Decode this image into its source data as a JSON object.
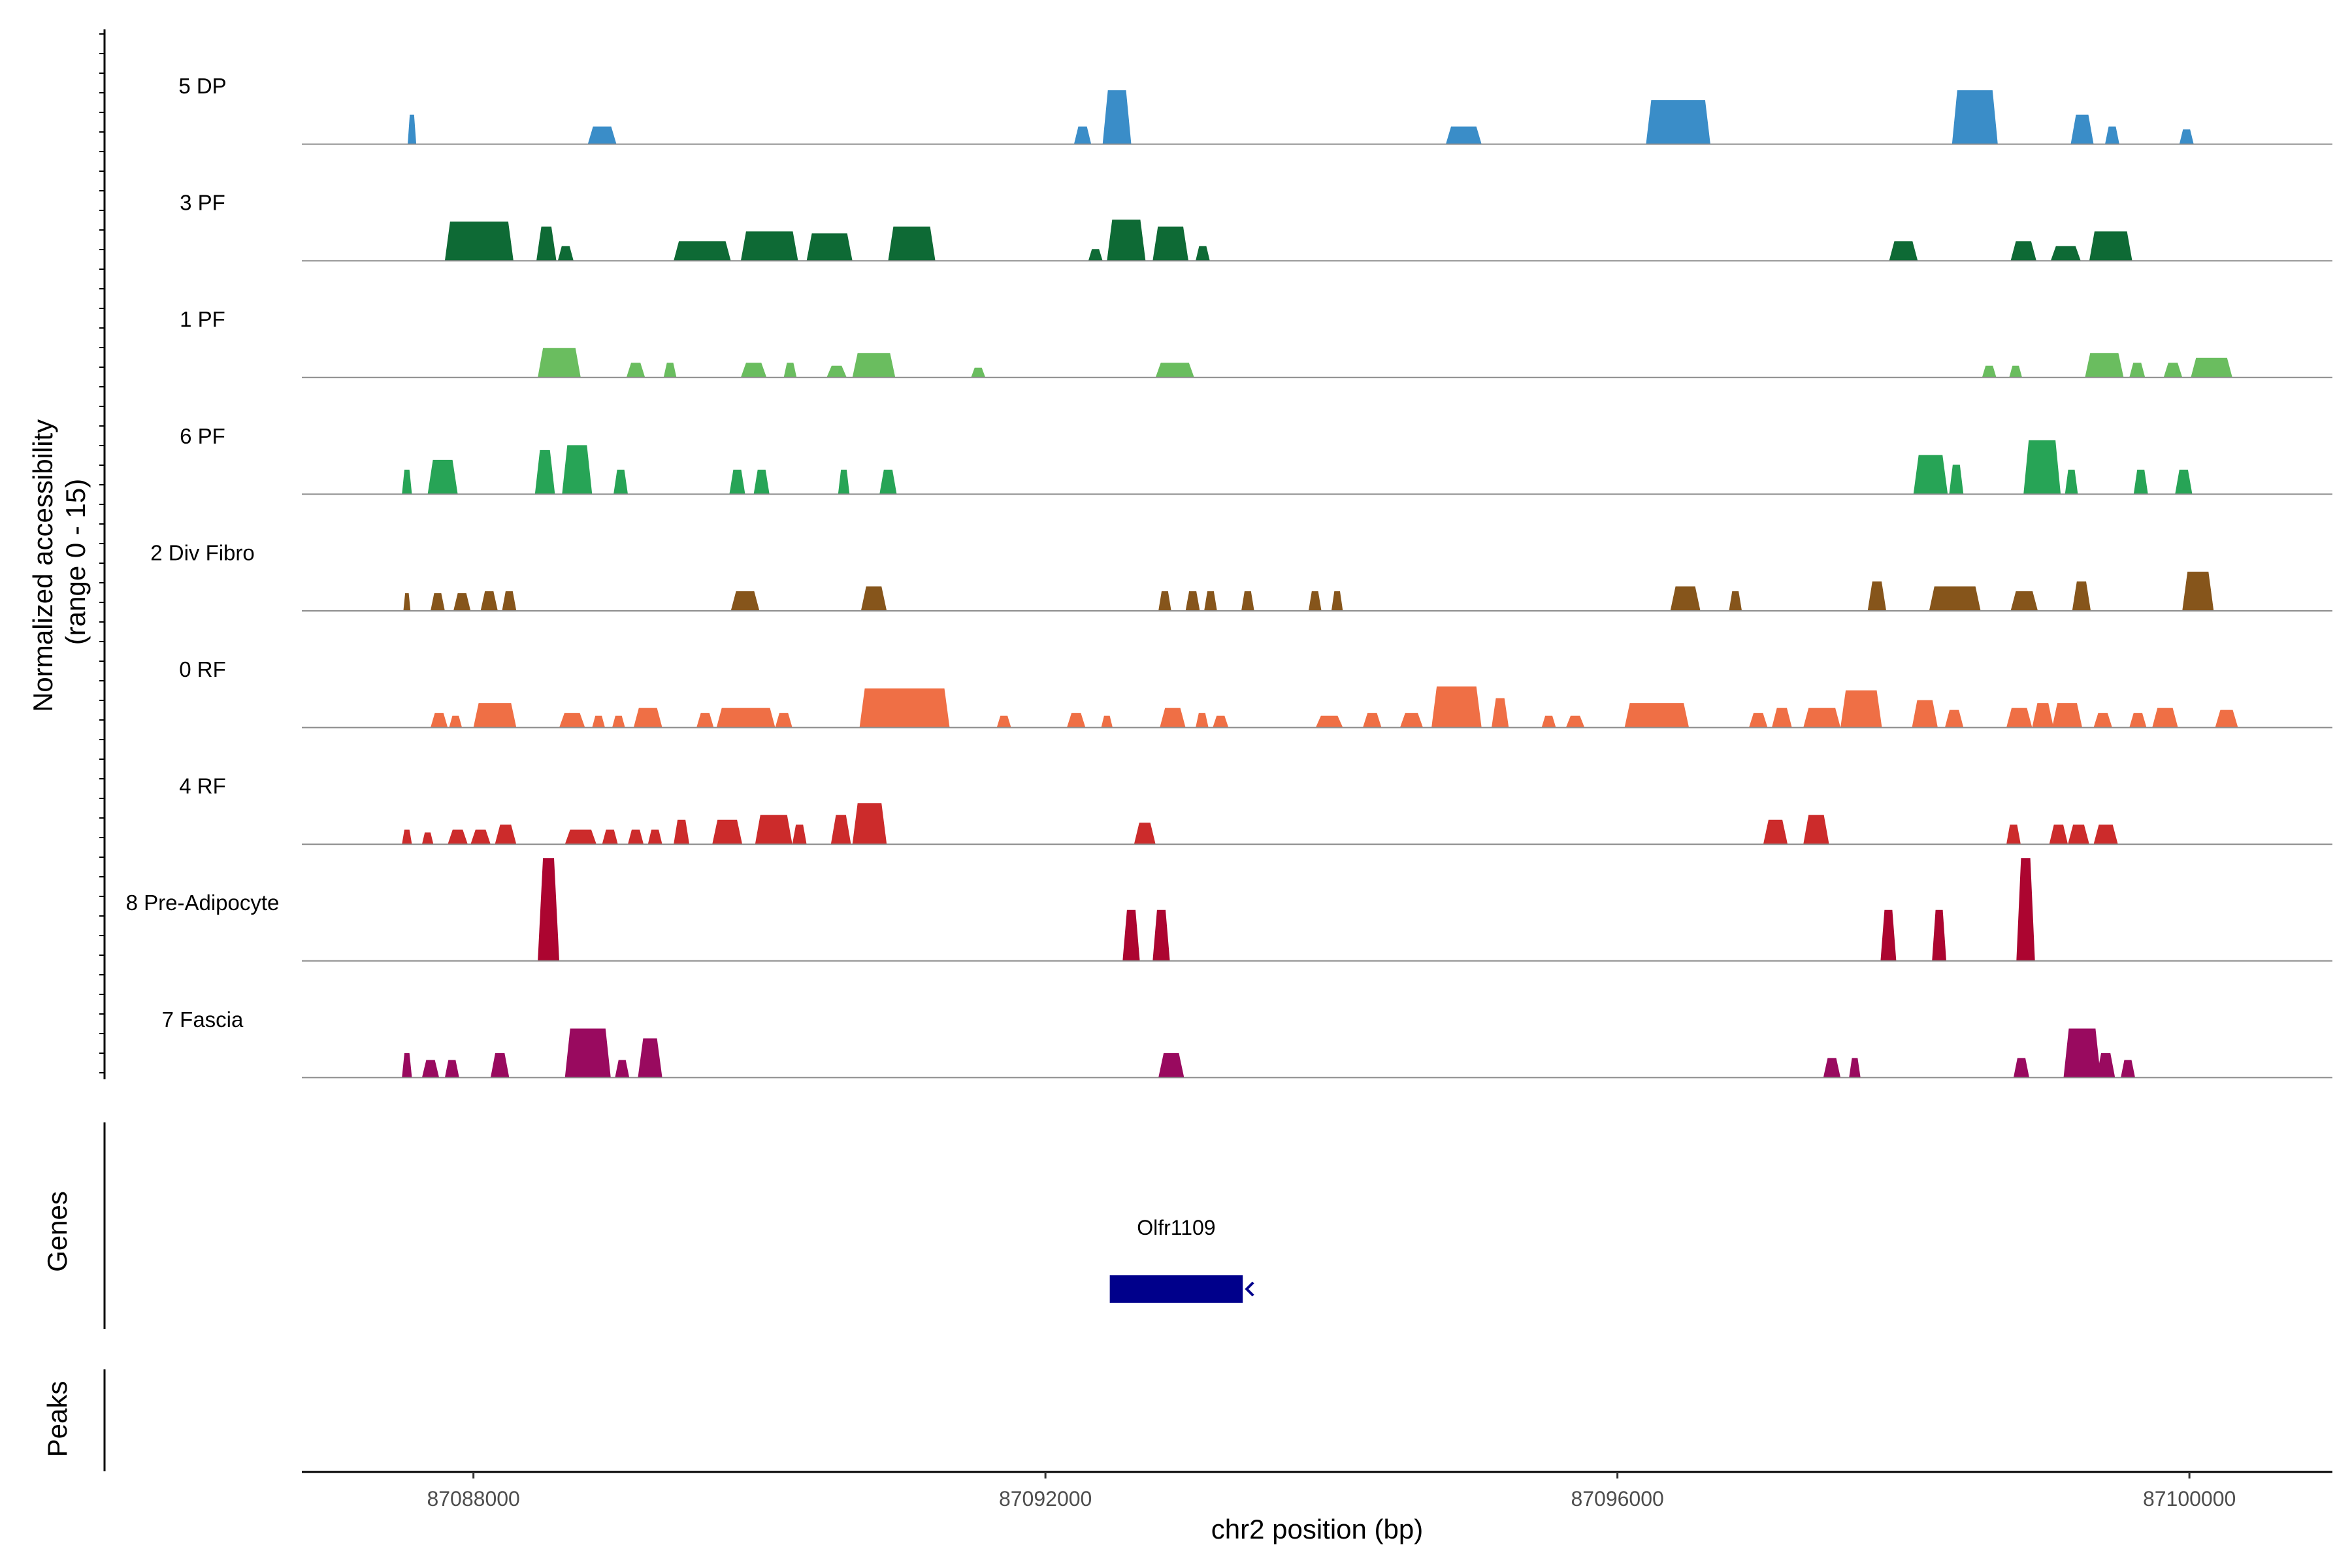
{
  "chart_data": {
    "type": "area",
    "title": "",
    "ylabel_line1": "Normalized accessibility",
    "ylabel_line2": "(range 0 - 15)",
    "ylim": [
      0,
      15
    ],
    "xlabel": "chr2 position (bp)",
    "xlim": [
      87086800,
      87101000
    ],
    "x_ticks": [
      87088000,
      87092000,
      87096000,
      87100000
    ],
    "x_tick_labels": [
      "87088000",
      "87092000",
      "87096000",
      "87100000"
    ],
    "tracks": [
      {
        "name": "5 DP",
        "color": "#3a8dc8",
        "peaks": [
          [
            87087540,
            87087600,
            0.3
          ],
          [
            87088800,
            87089000,
            0.18
          ],
          [
            87092200,
            87092320,
            0.18
          ],
          [
            87092400,
            87092600,
            0.55
          ],
          [
            87094800,
            87095050,
            0.18
          ],
          [
            87096200,
            87096650,
            0.45
          ],
          [
            87098340,
            87098660,
            0.55
          ],
          [
            87099170,
            87099330,
            0.3
          ],
          [
            87099410,
            87099510,
            0.18
          ],
          [
            87099930,
            87100030,
            0.15
          ]
        ]
      },
      {
        "name": "3 PF",
        "color": "#0e6a35",
        "peaks": [
          [
            87087800,
            87088280,
            0.4
          ],
          [
            87088440,
            87088580,
            0.35
          ],
          [
            87088590,
            87088700,
            0.15
          ],
          [
            87089400,
            87089800,
            0.2
          ],
          [
            87089870,
            87090270,
            0.3
          ],
          [
            87090330,
            87090650,
            0.28
          ],
          [
            87090900,
            87091230,
            0.35
          ],
          [
            87092300,
            87092400,
            0.12
          ],
          [
            87092430,
            87092700,
            0.42
          ],
          [
            87092750,
            87093000,
            0.35
          ],
          [
            87093050,
            87093150,
            0.15
          ],
          [
            87097900,
            87098100,
            0.2
          ],
          [
            87098750,
            87098930,
            0.2
          ],
          [
            87099030,
            87099240,
            0.15
          ],
          [
            87099300,
            87099600,
            0.3
          ]
        ]
      },
      {
        "name": "1 PF",
        "color": "#6abd5f",
        "peaks": [
          [
            87088450,
            87088750,
            0.3
          ],
          [
            87089070,
            87089200,
            0.15
          ],
          [
            87089330,
            87089420,
            0.15
          ],
          [
            87089870,
            87090050,
            0.15
          ],
          [
            87090170,
            87090260,
            0.15
          ],
          [
            87090470,
            87090610,
            0.12
          ],
          [
            87090650,
            87090950,
            0.25
          ],
          [
            87091480,
            87091580,
            0.1
          ],
          [
            87092770,
            87093040,
            0.15
          ],
          [
            87098550,
            87098650,
            0.12
          ],
          [
            87098740,
            87098830,
            0.12
          ],
          [
            87099270,
            87099540,
            0.25
          ],
          [
            87099580,
            87099690,
            0.15
          ],
          [
            87099820,
            87099950,
            0.15
          ],
          [
            87100010,
            87100300,
            0.2
          ]
        ]
      },
      {
        "name": "6 PF",
        "color": "#27a456",
        "peaks": [
          [
            87087500,
            87087570,
            0.25
          ],
          [
            87087680,
            87087890,
            0.35
          ],
          [
            87088430,
            87088570,
            0.45
          ],
          [
            87088620,
            87088830,
            0.5
          ],
          [
            87088980,
            87089080,
            0.25
          ],
          [
            87089790,
            87089900,
            0.25
          ],
          [
            87089960,
            87090070,
            0.25
          ],
          [
            87090550,
            87090630,
            0.25
          ],
          [
            87090840,
            87090960,
            0.25
          ],
          [
            87098070,
            87098310,
            0.4
          ],
          [
            87098320,
            87098420,
            0.3
          ],
          [
            87098840,
            87099100,
            0.55
          ],
          [
            87099130,
            87099220,
            0.25
          ],
          [
            87099610,
            87099710,
            0.25
          ],
          [
            87099900,
            87100020,
            0.25
          ]
        ]
      },
      {
        "name": "2 Div Fibro",
        "color": "#86551b",
        "peaks": [
          [
            87087510,
            87087560,
            0.18
          ],
          [
            87087700,
            87087800,
            0.18
          ],
          [
            87087860,
            87087980,
            0.18
          ],
          [
            87088050,
            87088170,
            0.2
          ],
          [
            87088200,
            87088300,
            0.2
          ],
          [
            87089800,
            87090000,
            0.2
          ],
          [
            87090710,
            87090890,
            0.25
          ],
          [
            87092790,
            87092880,
            0.2
          ],
          [
            87092980,
            87093080,
            0.2
          ],
          [
            87093110,
            87093200,
            0.2
          ],
          [
            87093370,
            87093460,
            0.2
          ],
          [
            87093840,
            87093930,
            0.2
          ],
          [
            87094000,
            87094080,
            0.2
          ],
          [
            87096370,
            87096580,
            0.25
          ],
          [
            87096780,
            87096870,
            0.2
          ],
          [
            87097750,
            87097880,
            0.3
          ],
          [
            87098180,
            87098540,
            0.25
          ],
          [
            87098750,
            87098940,
            0.2
          ],
          [
            87099180,
            87099310,
            0.3
          ],
          [
            87099950,
            87100170,
            0.4
          ]
        ]
      },
      {
        "name": "0 RF",
        "color": "#ef6f45",
        "peaks": [
          [
            87087700,
            87087820,
            0.15
          ],
          [
            87087830,
            87087920,
            0.12
          ],
          [
            87088000,
            87088300,
            0.25
          ],
          [
            87088600,
            87088780,
            0.15
          ],
          [
            87088830,
            87088920,
            0.12
          ],
          [
            87088970,
            87089060,
            0.12
          ],
          [
            87089120,
            87089320,
            0.2
          ],
          [
            87089560,
            87089680,
            0.15
          ],
          [
            87089700,
            87090110,
            0.2
          ],
          [
            87090110,
            87090230,
            0.15
          ],
          [
            87090700,
            87091330,
            0.4
          ],
          [
            87091660,
            87091760,
            0.12
          ],
          [
            87092150,
            87092280,
            0.15
          ],
          [
            87092390,
            87092470,
            0.12
          ],
          [
            87092800,
            87092980,
            0.2
          ],
          [
            87093050,
            87093140,
            0.15
          ],
          [
            87093170,
            87093280,
            0.12
          ],
          [
            87093890,
            87094080,
            0.12
          ],
          [
            87094220,
            87094350,
            0.15
          ],
          [
            87094480,
            87094640,
            0.15
          ],
          [
            87094700,
            87095050,
            0.42
          ],
          [
            87095120,
            87095240,
            0.3
          ],
          [
            87095470,
            87095570,
            0.12
          ],
          [
            87095640,
            87095770,
            0.12
          ],
          [
            87096050,
            87096500,
            0.25
          ],
          [
            87096920,
            87097050,
            0.15
          ],
          [
            87097080,
            87097220,
            0.2
          ],
          [
            87097300,
            87097560,
            0.2
          ],
          [
            87097560,
            87097850,
            0.38
          ],
          [
            87098060,
            87098240,
            0.28
          ],
          [
            87098290,
            87098420,
            0.18
          ],
          [
            87098720,
            87098900,
            0.2
          ],
          [
            87098900,
            87099050,
            0.25
          ],
          [
            87099040,
            87099250,
            0.25
          ],
          [
            87099330,
            87099460,
            0.15
          ],
          [
            87099580,
            87099700,
            0.15
          ],
          [
            87099740,
            87099920,
            0.2
          ],
          [
            87100180,
            87100340,
            0.18
          ]
        ]
      },
      {
        "name": "4 RF",
        "color": "#cc2b2b",
        "peaks": [
          [
            87087500,
            87087570,
            0.15
          ],
          [
            87087640,
            87087720,
            0.12
          ],
          [
            87087820,
            87087960,
            0.15
          ],
          [
            87087980,
            87088120,
            0.15
          ],
          [
            87088150,
            87088300,
            0.2
          ],
          [
            87088640,
            87088860,
            0.15
          ],
          [
            87088900,
            87089010,
            0.15
          ],
          [
            87089080,
            87089190,
            0.15
          ],
          [
            87089220,
            87089320,
            0.15
          ],
          [
            87089400,
            87089510,
            0.25
          ],
          [
            87089670,
            87089880,
            0.25
          ],
          [
            87089970,
            87090230,
            0.3
          ],
          [
            87090230,
            87090330,
            0.2
          ],
          [
            87090500,
            87090640,
            0.3
          ],
          [
            87090650,
            87090890,
            0.42
          ],
          [
            87092620,
            87092770,
            0.22
          ],
          [
            87097020,
            87097190,
            0.25
          ],
          [
            87097300,
            87097480,
            0.3
          ],
          [
            87098720,
            87098820,
            0.2
          ],
          [
            87099020,
            87099150,
            0.2
          ],
          [
            87099150,
            87099300,
            0.2
          ],
          [
            87099330,
            87099500,
            0.2
          ]
        ]
      },
      {
        "name": "8 Pre-Adipocyte",
        "color": "#ac0530",
        "peaks": [
          [
            87088450,
            87088600,
            1.05
          ],
          [
            87092540,
            87092660,
            0.52
          ],
          [
            87092750,
            87092870,
            0.52
          ],
          [
            87097840,
            87097950,
            0.52
          ],
          [
            87098200,
            87098300,
            0.52
          ],
          [
            87098790,
            87098920,
            1.05
          ]
        ]
      },
      {
        "name": "7 Fascia",
        "color": "#990a5f",
        "peaks": [
          [
            87087500,
            87087570,
            0.25
          ],
          [
            87087640,
            87087760,
            0.18
          ],
          [
            87087800,
            87087900,
            0.18
          ],
          [
            87088120,
            87088250,
            0.25
          ],
          [
            87088640,
            87088960,
            0.5
          ],
          [
            87088990,
            87089090,
            0.18
          ],
          [
            87089150,
            87089320,
            0.4
          ],
          [
            87092790,
            87092970,
            0.25
          ],
          [
            87097440,
            87097560,
            0.2
          ],
          [
            87097620,
            87097700,
            0.2
          ],
          [
            87098770,
            87098880,
            0.2
          ],
          [
            87099120,
            87099380,
            0.5
          ],
          [
            87099350,
            87099480,
            0.25
          ],
          [
            87099520,
            87099620,
            0.18
          ]
        ]
      }
    ],
    "genes_label": "Genes",
    "genes": [
      {
        "name": "Olfr1109",
        "start": 87092450,
        "end": 87093380,
        "strand": "-",
        "color": "#00008b"
      }
    ],
    "peaks_label": "Peaks"
  }
}
